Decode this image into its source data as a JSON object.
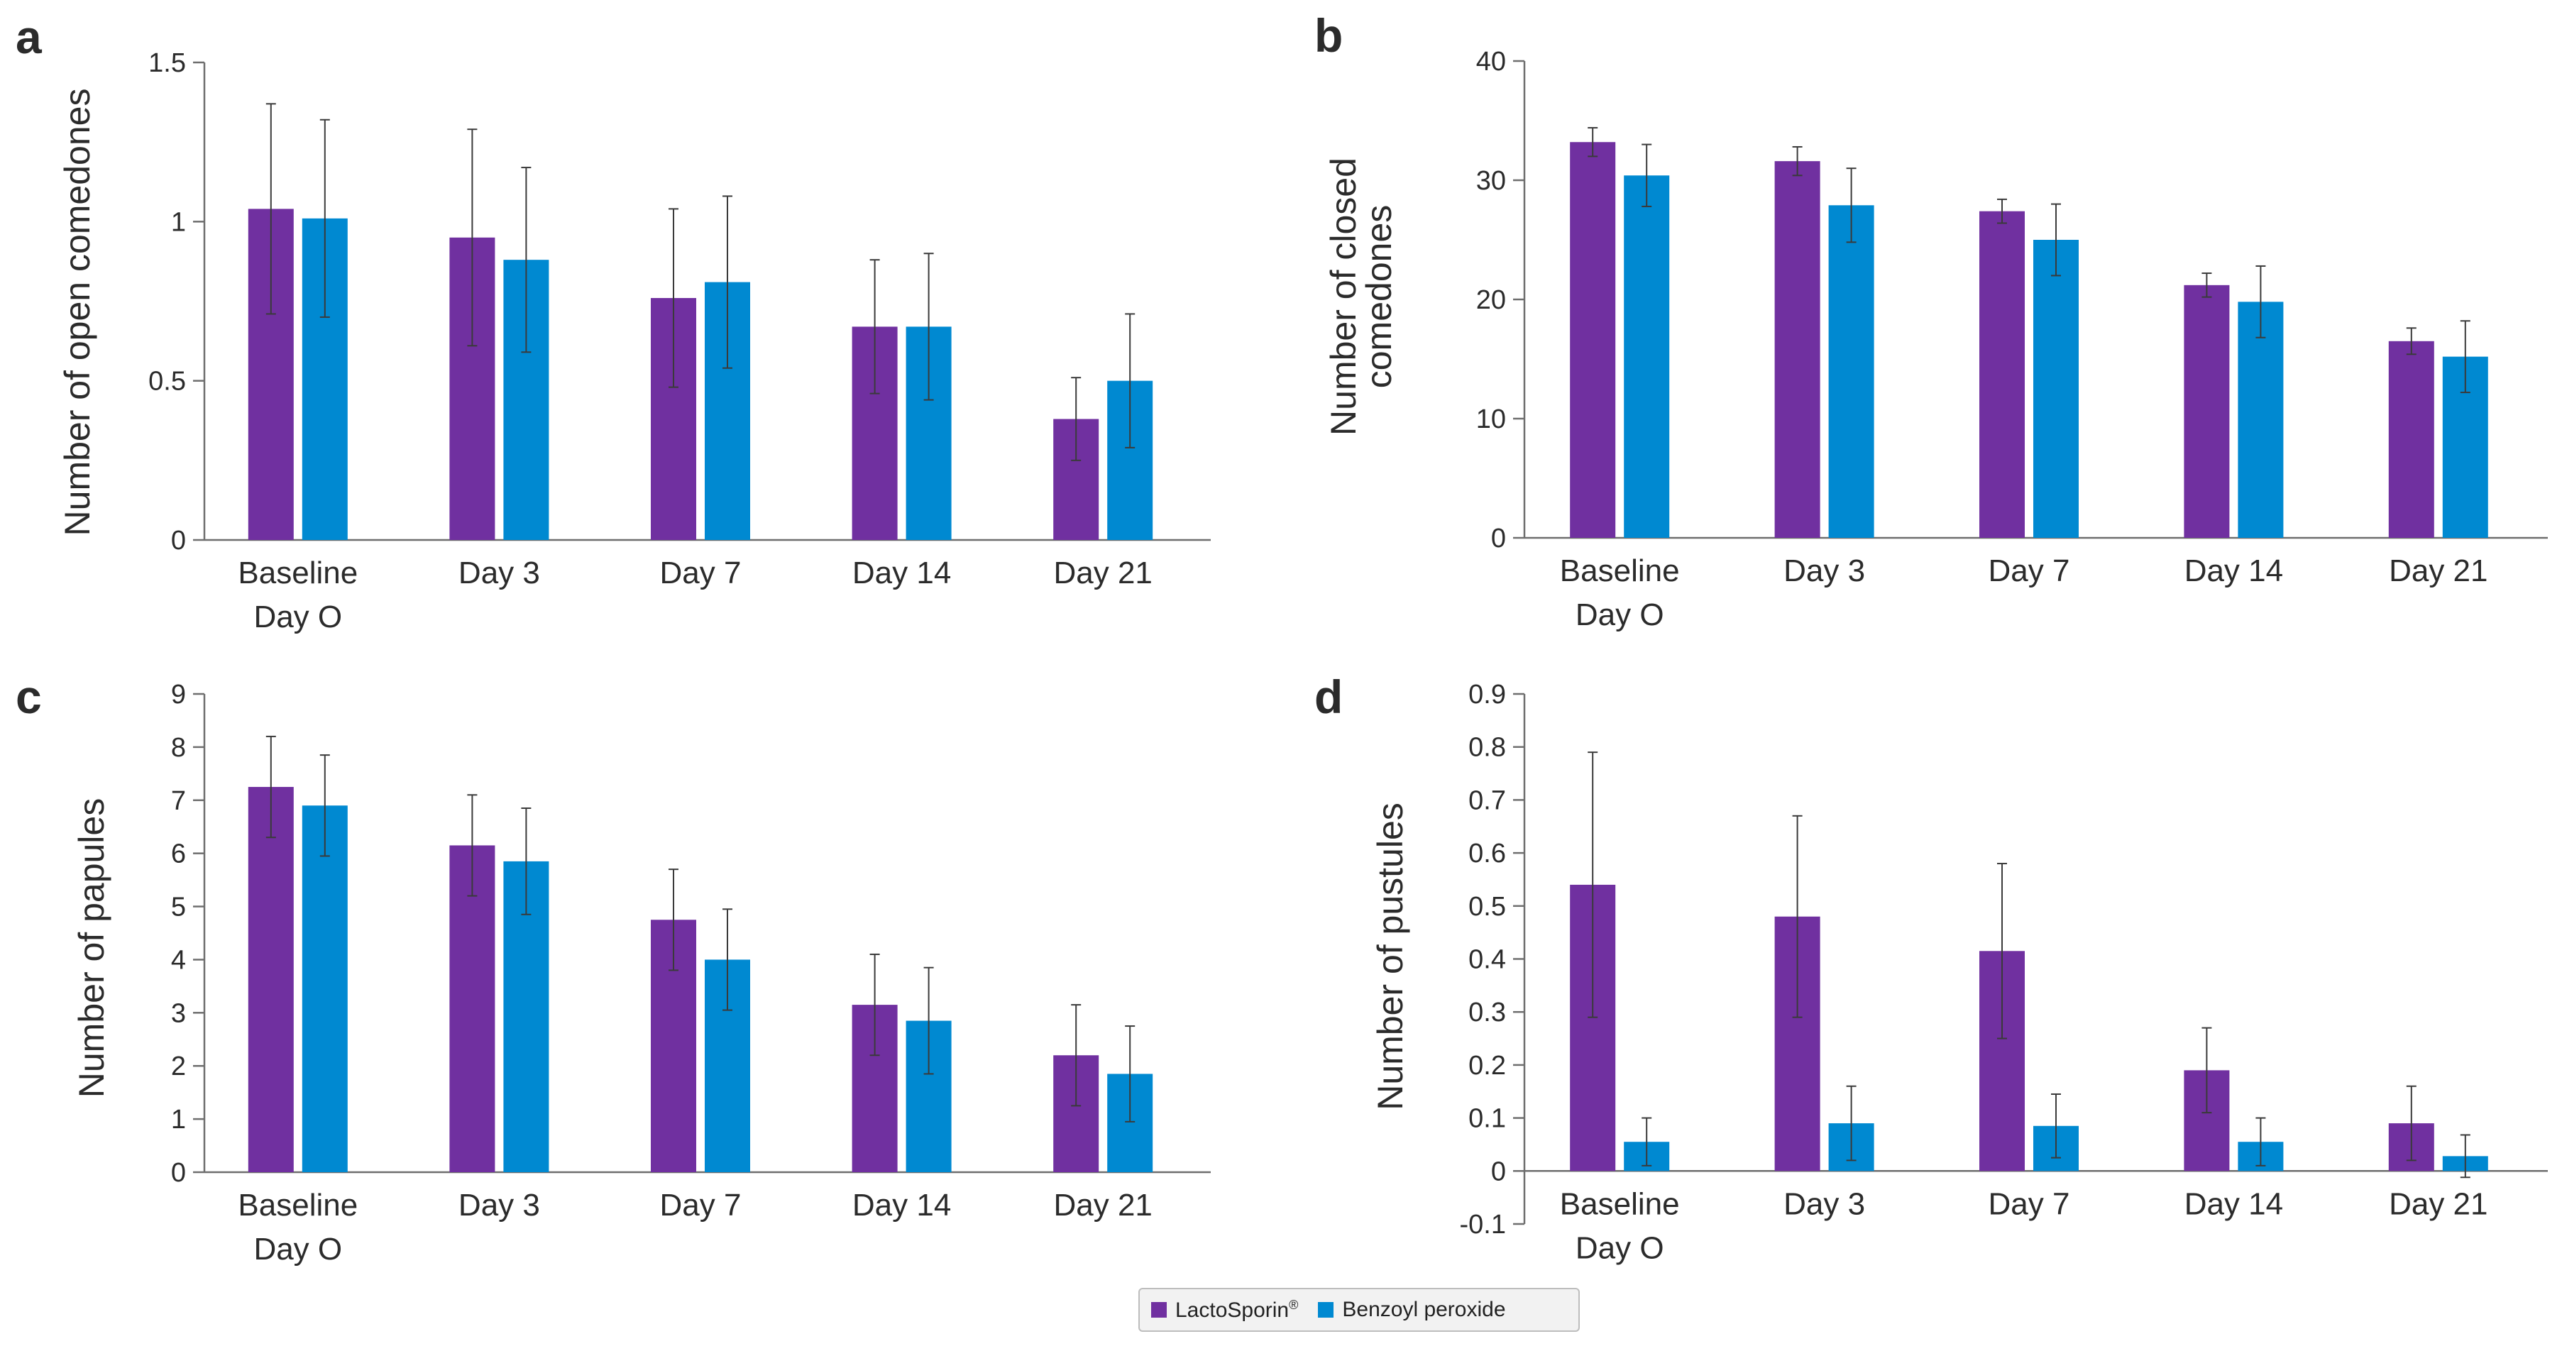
{
  "colors": {
    "lactosporin": "#7030a0",
    "benzoyl": "#0089d1",
    "axis": "#6e6e6e",
    "text": "#2b2b2b"
  },
  "legend": {
    "lactosporin": "LactoSporin",
    "lactosporin_mark": "®",
    "benzoyl": "Benzoyl peroxide"
  },
  "chart_data": [
    {
      "type": "bar",
      "panel": "a",
      "ylabel": "Number of open comedones",
      "categories": [
        [
          "Baseline",
          "Day O"
        ],
        [
          "Day 3"
        ],
        [
          "Day 7"
        ],
        [
          "Day 14"
        ],
        [
          "Day 21"
        ]
      ],
      "ylim": [
        0,
        1.5
      ],
      "yticks": [
        0,
        0.5,
        1,
        1.5
      ],
      "ytick_labels": [
        "0",
        "0.5",
        "1",
        "1.5"
      ],
      "series": [
        {
          "name": "LactoSporin",
          "values": [
            1.04,
            0.95,
            0.76,
            0.67,
            0.38
          ],
          "errors": [
            0.33,
            0.34,
            0.28,
            0.21,
            0.13
          ]
        },
        {
          "name": "Benzoyl peroxide",
          "values": [
            1.01,
            0.88,
            0.81,
            0.67,
            0.5
          ],
          "errors": [
            0.31,
            0.29,
            0.27,
            0.23,
            0.21
          ]
        }
      ]
    },
    {
      "type": "bar",
      "panel": "b",
      "ylabel": [
        "Number of closed",
        "comedones"
      ],
      "categories": [
        [
          "Baseline",
          "Day O"
        ],
        [
          "Day 3"
        ],
        [
          "Day 7"
        ],
        [
          "Day 14"
        ],
        [
          "Day 21"
        ]
      ],
      "ylim": [
        0,
        40
      ],
      "yticks": [
        0,
        10,
        20,
        30,
        40
      ],
      "ytick_labels": [
        "0",
        "10",
        "20",
        "30",
        "40"
      ],
      "series": [
        {
          "name": "LactoSporin",
          "values": [
            33.2,
            31.6,
            27.4,
            21.2,
            16.5
          ],
          "errors": [
            1.2,
            1.2,
            1.0,
            1.0,
            1.1
          ]
        },
        {
          "name": "Benzoyl peroxide",
          "values": [
            30.4,
            27.9,
            25,
            19.8,
            15.2
          ],
          "errors": [
            2.6,
            3.1,
            3.0,
            3.0,
            3.0
          ]
        }
      ]
    },
    {
      "type": "bar",
      "panel": "c",
      "ylabel": "Number of papules",
      "categories": [
        [
          "Baseline",
          "Day O"
        ],
        [
          "Day 3"
        ],
        [
          "Day 7"
        ],
        [
          "Day 14"
        ],
        [
          "Day 21"
        ]
      ],
      "ylim": [
        0,
        9
      ],
      "yticks": [
        0,
        1,
        2,
        3,
        4,
        5,
        6,
        7,
        8,
        9
      ],
      "ytick_labels": [
        "0",
        "1",
        "2",
        "3",
        "4",
        "5",
        "6",
        "7",
        "8",
        "9"
      ],
      "series": [
        {
          "name": "LactoSporin",
          "values": [
            7.25,
            6.15,
            4.75,
            3.15,
            2.2
          ],
          "errors": [
            0.95,
            0.95,
            0.95,
            0.95,
            0.95
          ]
        },
        {
          "name": "Benzoyl peroxide",
          "values": [
            6.9,
            5.85,
            4,
            2.85,
            1.85
          ],
          "errors": [
            0.95,
            1.0,
            0.95,
            1.0,
            0.9
          ]
        }
      ]
    },
    {
      "type": "bar",
      "panel": "d",
      "ylabel": "Number of pustules",
      "categories": [
        [
          "Baseline",
          "Day O"
        ],
        [
          "Day 3"
        ],
        [
          "Day 7"
        ],
        [
          "Day 14"
        ],
        [
          "Day 21"
        ]
      ],
      "ylim": [
        -0.1,
        0.9
      ],
      "yticks": [
        -0.1,
        0,
        0.1,
        0.2,
        0.3,
        0.4,
        0.5,
        0.6,
        0.7,
        0.8,
        0.9
      ],
      "ytick_labels": [
        "-0.1",
        "0",
        "0.1",
        "0.2",
        "0.3",
        "0.4",
        "0.5",
        "0.6",
        "0.7",
        "0.8",
        "0.9"
      ],
      "series": [
        {
          "name": "LactoSporin",
          "values": [
            0.54,
            0.48,
            0.415,
            0.19,
            0.09
          ],
          "errors": [
            0.25,
            0.19,
            0.165,
            0.08,
            0.07
          ]
        },
        {
          "name": "Benzoyl peroxide",
          "values": [
            0.055,
            0.09,
            0.085,
            0.055,
            0.028
          ],
          "errors": [
            0.045,
            0.07,
            0.06,
            0.045,
            0.04
          ]
        }
      ]
    }
  ]
}
